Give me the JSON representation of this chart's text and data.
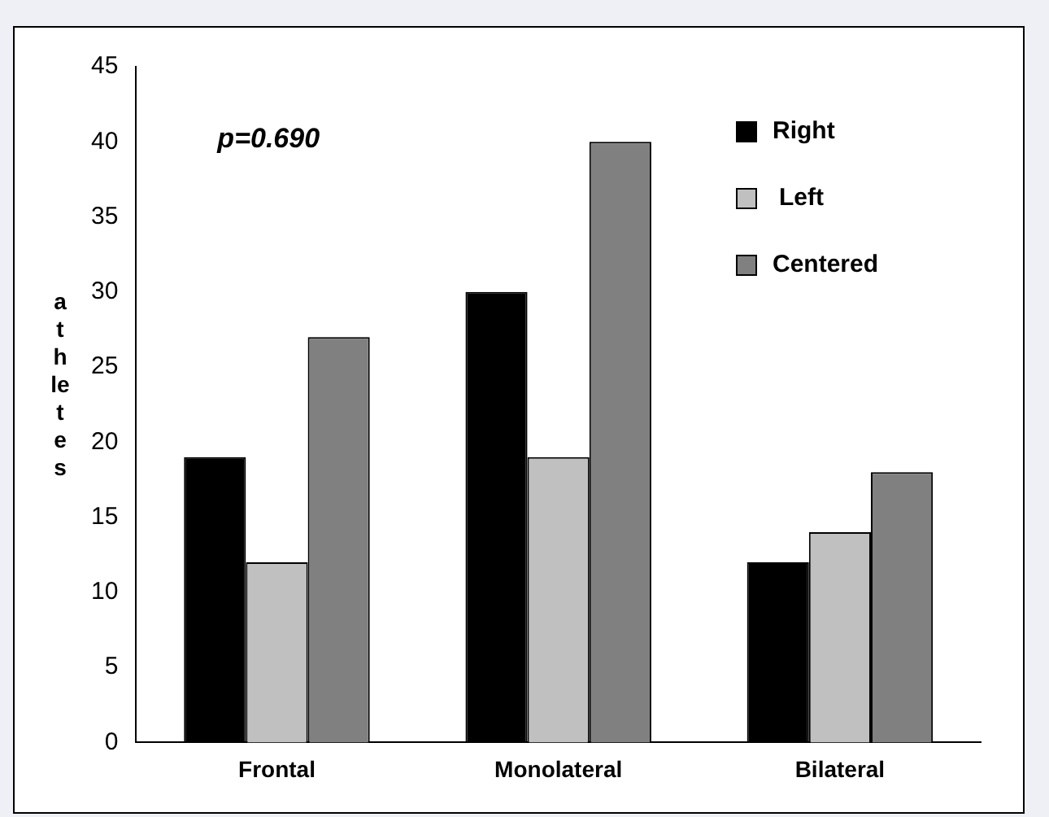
{
  "chart_data": {
    "type": "bar",
    "ylabel": "athletes",
    "categories": [
      "Frontal",
      "Monolateral",
      "Bilateral"
    ],
    "series": [
      {
        "name": "Right",
        "color": "#000000",
        "values": [
          19,
          30,
          12
        ]
      },
      {
        "name": "Left",
        "color": "#c0c0c0",
        "values": [
          12,
          19,
          14
        ]
      },
      {
        "name": "Centered",
        "color": "#808080",
        "values": [
          27,
          40,
          18
        ]
      }
    ],
    "ylim": [
      0,
      45
    ],
    "yticks": [
      0,
      5,
      10,
      15,
      20,
      25,
      30,
      35,
      40,
      45
    ],
    "grid": false,
    "legend": "top right",
    "annotations": [
      "p=0.690"
    ]
  }
}
